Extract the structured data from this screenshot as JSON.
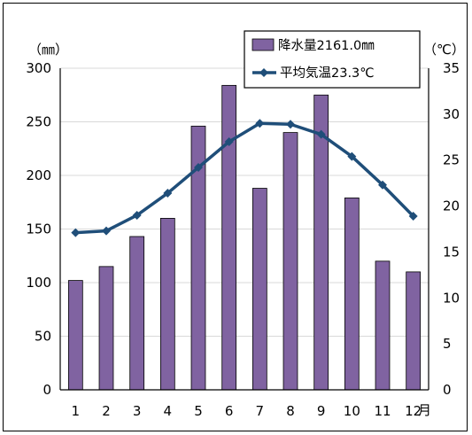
{
  "chart_data": {
    "type": "bar",
    "categories": [
      "1",
      "2",
      "3",
      "4",
      "5",
      "6",
      "7",
      "8",
      "9",
      "10",
      "11",
      "12"
    ],
    "xunit": "月",
    "series": [
      {
        "name": "降水量2161.0㎜",
        "type": "bar",
        "axis": "left",
        "color": "#8063A1",
        "values": [
          102,
          115,
          143,
          160,
          246,
          284,
          188,
          240,
          275,
          179,
          120,
          110
        ]
      },
      {
        "name": "平均気温23.3℃",
        "type": "line",
        "axis": "right",
        "color": "#1F4E79",
        "values": [
          17.1,
          17.3,
          19.0,
          21.4,
          24.2,
          27.0,
          29.0,
          28.9,
          27.8,
          25.4,
          22.3,
          18.9
        ]
      }
    ],
    "left_axis": {
      "unit": "（㎜）",
      "range": [
        0,
        300
      ],
      "ticks": [
        0,
        50,
        100,
        150,
        200,
        250,
        300
      ]
    },
    "right_axis": {
      "unit": "（℃）",
      "range": [
        0,
        35
      ],
      "ticks": [
        0,
        5,
        10,
        15,
        20,
        25,
        30,
        35
      ]
    },
    "grid": "horizontal",
    "legend_position": "top-right"
  }
}
